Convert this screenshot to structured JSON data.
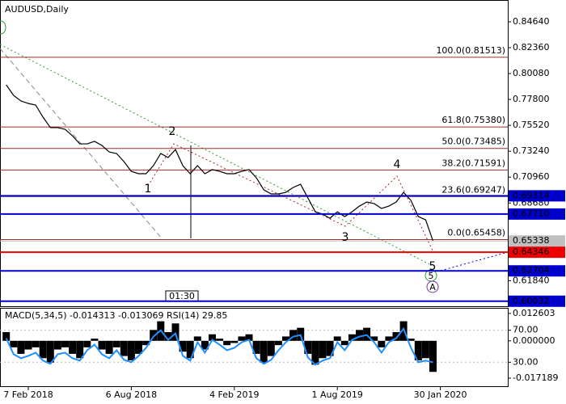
{
  "chart_data": [
    {
      "type": "line",
      "title": "AUDUSD,Daily",
      "categories": [
        null,
        null,
        null,
        "7 Feb 2018",
        null,
        null,
        null,
        null,
        null,
        null,
        null,
        null,
        null,
        null,
        null,
        null,
        null,
        "6 Aug 2018",
        null,
        null,
        null,
        null,
        null,
        null,
        null,
        null,
        null,
        null,
        null,
        null,
        null,
        "4 Feb 2019",
        null,
        null,
        null,
        null,
        null,
        null,
        null,
        null,
        null,
        null,
        null,
        null,
        null,
        "1 Aug 2019",
        null,
        null,
        null,
        null,
        null,
        null,
        null,
        null,
        null,
        null,
        null,
        null,
        null,
        "30 Jan 2020",
        null,
        null,
        null,
        null,
        null,
        null,
        null,
        null,
        null
      ],
      "series": [
        {
          "color": "#000000",
          "values": [
            0.7909,
            0.7816,
            0.7767,
            0.7745,
            0.7731,
            0.7624,
            0.7532,
            0.7532,
            0.7517,
            0.746,
            0.7389,
            0.7389,
            0.7411,
            0.7375,
            0.7318,
            0.7304,
            0.7233,
            0.7147,
            0.7126,
            0.7126,
            0.7197,
            0.7304,
            0.7268,
            0.7339,
            0.7197,
            0.7126,
            0.7197,
            0.7126,
            0.7162,
            0.7147,
            0.7126,
            0.7126,
            0.7147,
            0.7162,
            0.709,
            0.6984,
            0.6948,
            0.6948,
            0.6962,
            0.7005,
            0.7033,
            0.6913,
            0.6791,
            0.677,
            0.6734,
            0.6791,
            0.6749,
            0.6791,
            0.6841,
            0.6877,
            0.6863,
            0.682,
            0.6841,
            0.6877,
            0.6962,
            0.6891,
            0.6749,
            0.672,
            0.6534,
            null,
            null,
            null,
            null,
            null,
            null,
            null,
            null,
            null,
            null
          ]
        }
      ],
      "ylim": [
        0.5959,
        0.8656
      ],
      "yticks": [
        {
          "value": 0.8464,
          "label": "0.84640"
        },
        {
          "value": 0.8236,
          "label": "0.82360"
        },
        {
          "value": 0.8008,
          "label": "0.80080"
        },
        {
          "value": 0.778,
          "label": "0.77800"
        },
        {
          "value": 0.7552,
          "label": "0.75520"
        },
        {
          "value": 0.7324,
          "label": "0.73240"
        },
        {
          "value": 0.7096,
          "label": "0.70960"
        },
        {
          "value": 0.6868,
          "label": "0.68680"
        },
        {
          "value": 0.6184,
          "label": "0.61840"
        }
      ],
      "fib_levels": [
        {
          "value": 0.81513,
          "label": "100.0(0.81513)"
        },
        {
          "value": 0.7538,
          "label": "61.8(0.75380)"
        },
        {
          "value": 0.73485,
          "label": "50.0(0.73485)"
        },
        {
          "value": 0.71591,
          "label": "38.2(0.71591)"
        },
        {
          "value": 0.69247,
          "label": "23.6(0.69247)"
        },
        {
          "value": 0.65458,
          "label": "0.0(0.65458)"
        }
      ],
      "fib_color": "#a52a2a",
      "levels": [
        {
          "value": 0.69314,
          "label": "0.69314",
          "color": "#0000cc"
        },
        {
          "value": 0.6771,
          "label": "0.67710",
          "color": "#0000cc"
        },
        {
          "value": 0.65338,
          "label": "0.65338",
          "color": "#c0c0c0"
        },
        {
          "value": 0.64346,
          "label": "0.64346",
          "color": "#ee0000"
        },
        {
          "value": 0.62704,
          "label": "0.62704",
          "color": "#0000cc"
        },
        {
          "value": 0.60032,
          "label": "0.60032",
          "color": "#0000cc"
        }
      ],
      "wave_labels": [
        "1",
        "2",
        "3",
        "4",
        "5"
      ],
      "circled_labels": [
        "5",
        "A"
      ],
      "time_label": "01:30"
    },
    {
      "type": "indicator",
      "title": "MACD(5,34,5) -0.014313 -0.013069 RSI(14) 29.85",
      "series": [
        {
          "type": "bar",
          "color": "#000000",
          "values": [
            0.004,
            -0.003,
            -0.006,
            -0.004,
            -0.003,
            -0.008,
            -0.01,
            -0.004,
            -0.003,
            -0.006,
            -0.008,
            -0.003,
            0.001,
            -0.004,
            -0.006,
            -0.003,
            -0.007,
            -0.009,
            -0.006,
            -0.002,
            0.005,
            0.009,
            0.004,
            0.008,
            -0.005,
            -0.008,
            0.002,
            -0.004,
            0.003,
            0.001,
            -0.002,
            -0.001,
            0.002,
            0.003,
            -0.006,
            -0.01,
            -0.007,
            -0.002,
            0.002,
            0.005,
            0.006,
            -0.006,
            -0.011,
            -0.008,
            -0.007,
            0.002,
            -0.002,
            0.003,
            0.005,
            0.006,
            0.002,
            -0.003,
            0.002,
            0.004,
            0.009,
            0.001,
            -0.009,
            -0.008,
            -0.0143,
            null,
            null,
            null,
            null,
            null,
            null,
            null,
            null,
            null,
            null
          ]
        },
        {
          "type": "line",
          "axis": "y2",
          "color": "#1e90ff",
          "values": [
            60,
            40,
            35,
            38,
            42,
            32,
            28,
            40,
            42,
            35,
            32,
            45,
            52,
            40,
            35,
            45,
            33,
            30,
            38,
            48,
            62,
            70,
            58,
            66,
            38,
            32,
            55,
            42,
            58,
            52,
            45,
            48,
            55,
            58,
            35,
            28,
            33,
            45,
            55,
            62,
            64,
            36,
            27,
            32,
            35,
            55,
            45,
            58,
            62,
            64,
            55,
            42,
            55,
            60,
            72,
            48,
            30,
            32,
            29.85,
            null,
            null,
            null,
            null,
            null,
            null,
            null,
            null,
            null,
            null
          ]
        }
      ],
      "ylim": [
        -0.0209,
        0.0148
      ],
      "yticks": [
        0.012603,
        {
          "value": 0,
          "label": "0.000000"
        },
        -0.017189
      ],
      "y2lim": [
        0,
        97
      ],
      "y2ticks": [
        {
          "value": 70,
          "label": "70.00"
        },
        {
          "value": 30,
          "label": "30.00"
        }
      ]
    }
  ]
}
